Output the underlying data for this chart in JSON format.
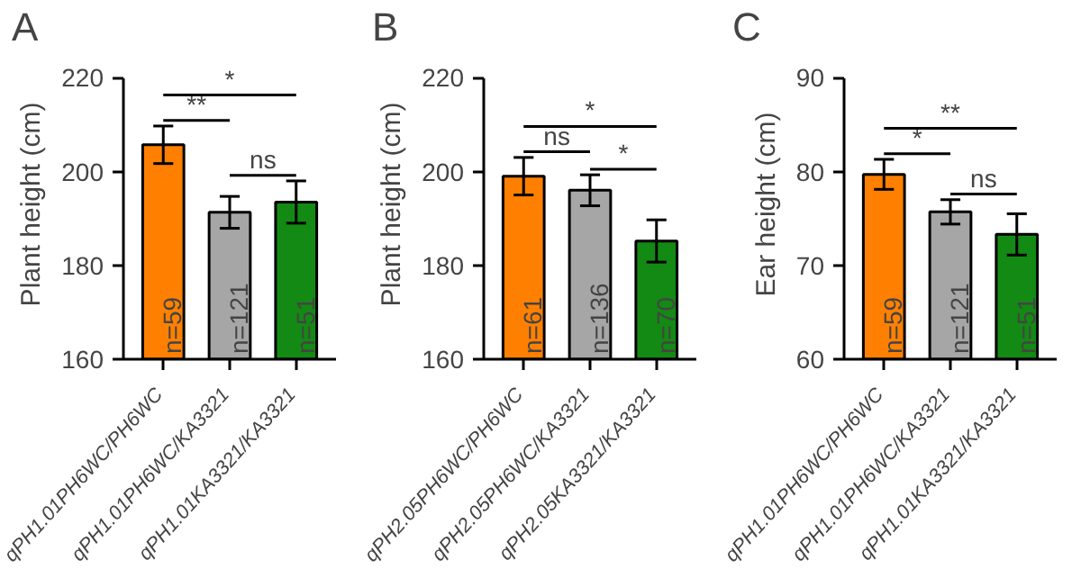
{
  "chart_data": [
    {
      "type": "bar",
      "title": "A",
      "ylabel": "Plant height (cm)",
      "categories": [
        "qPH1.01PH6WC/PH6WC",
        "qPH1.01PH6WC/KA3321",
        "qPH1.01KA3321/KA3321"
      ],
      "values": [
        205.7,
        191.3,
        193.5
      ],
      "errors": [
        4,
        3.4,
        4.5
      ],
      "colors": [
        "#ff8000",
        "#a6a6a6",
        "#138a13"
      ],
      "ylim": [
        160,
        220
      ],
      "yticks": [
        160,
        180,
        200,
        220
      ],
      "grid": false,
      "annotations": [
        {
          "text": "n=59",
          "x": "qPH1.01PH6WC/PH6WC",
          "y": 160
        },
        {
          "text": "n=121",
          "x": "qPH1.01PH6WC/KA3321",
          "y": 160
        },
        {
          "text": "n=51",
          "x": "qPH1.01KA3321/KA3321",
          "y": 160
        },
        "**",
        "*",
        "ns"
      ]
    },
    {
      "type": "bar",
      "title": "B",
      "ylabel": "Plant height (cm)",
      "categories": [
        "qPH2.05PH6WC/PH6WC",
        "qPH2.05PH6WC/KA3321",
        "qPH2.05KA3321/KA3321"
      ],
      "values": [
        199,
        196,
        185.2
      ],
      "errors": [
        4,
        3.3,
        4.5
      ],
      "colors": [
        "#ff8000",
        "#a6a6a6",
        "#138a13"
      ],
      "ylim": [
        160,
        220
      ],
      "yticks": [
        160,
        180,
        200,
        220
      ],
      "grid": false,
      "annotations": [
        {
          "text": "n=61",
          "x": "qPH2.05PH6WC/PH6WC",
          "y": 160
        },
        {
          "text": "n=136",
          "x": "qPH2.05PH6WC/KA3321",
          "y": 160
        },
        {
          "text": "n=70",
          "x": "qPH2.05KA3321/KA3321",
          "y": 160
        },
        "ns",
        "*",
        "*"
      ]
    },
    {
      "type": "bar",
      "title": "C",
      "ylabel": "Ear height (cm)",
      "categories": [
        "qPH1.01PH6WC/PH6WC",
        "qPH1.01PH6WC/KA3321",
        "qPH1.01KA3321/KA3321"
      ],
      "values": [
        79.7,
        75.7,
        73.3
      ],
      "errors": [
        1.6,
        1.3,
        2.2
      ],
      "colors": [
        "#ff8000",
        "#a6a6a6",
        "#138a13"
      ],
      "ylim": [
        60,
        90
      ],
      "yticks": [
        60,
        70,
        80,
        90
      ],
      "grid": false,
      "annotations": [
        {
          "text": "n=59",
          "x": "qPH1.01PH6WC/PH6WC",
          "y": 60
        },
        {
          "text": "n=121",
          "x": "qPH1.01PH6WC/KA3321",
          "y": 60
        },
        {
          "text": "n=51",
          "x": "qPH1.01KA3321/KA3321",
          "y": 60
        },
        "*",
        "**",
        "ns"
      ]
    }
  ]
}
